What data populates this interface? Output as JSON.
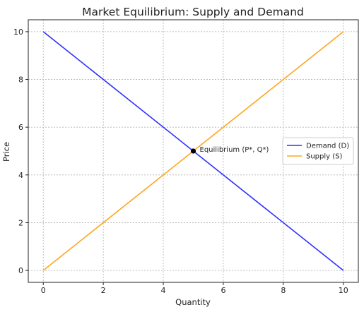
{
  "chart_data": {
    "type": "line",
    "title": "Market Equilibrium: Supply and Demand",
    "xlabel": "Quantity",
    "ylabel": "Price",
    "xlim": [
      -0.5,
      10.5
    ],
    "ylim": [
      -0.5,
      10.5
    ],
    "xticks": [
      0,
      2,
      4,
      6,
      8,
      10
    ],
    "yticks": [
      0,
      2,
      4,
      6,
      8,
      10
    ],
    "grid": true,
    "legend_position": "right",
    "series": [
      {
        "name": "Demand (D)",
        "color": "#2f2fff",
        "x": [
          0,
          10
        ],
        "y": [
          10,
          0
        ]
      },
      {
        "name": "Supply (S)",
        "color": "#ffa51f",
        "x": [
          0,
          10
        ],
        "y": [
          0,
          10
        ]
      }
    ],
    "points": [
      {
        "label": "Equilibrium (P*, Q*)",
        "x": 5,
        "y": 5,
        "color": "#000000"
      }
    ]
  }
}
